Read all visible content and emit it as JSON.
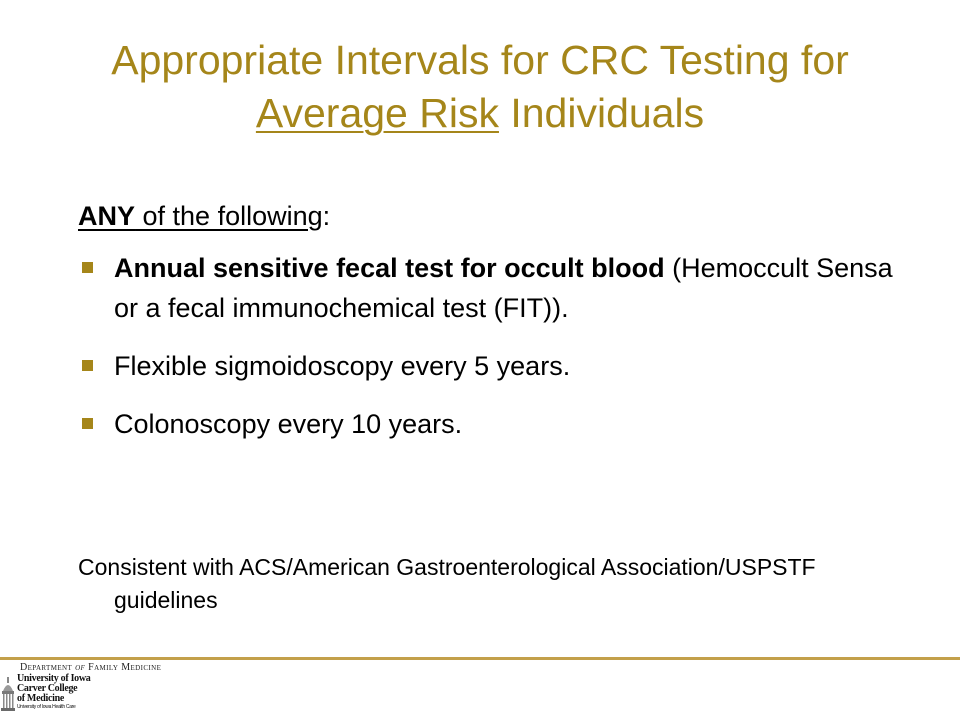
{
  "slide": {
    "title": {
      "line1": "Appropriate Intervals for CRC Testing for",
      "underlined": "Average Risk",
      "rest": " Individuals"
    },
    "intro": {
      "bold": "ANY",
      "rest": " of the following",
      "colon": ":"
    },
    "bullets": [
      {
        "bold": "Annual sensitive fecal test for occult blood",
        "text": " (Hemoccult Sensa or a fecal immunochemical test (FIT))."
      },
      {
        "bold": "",
        "text": "Flexible sigmoidoscopy every 5 years."
      },
      {
        "bold": "",
        "text": "Colonoscopy every 10 years."
      }
    ],
    "footnote": "Consistent with ACS/American Gastroenterological Association/USPSTF guidelines"
  },
  "footer": {
    "department": {
      "pre": "Department ",
      "of": "of",
      "post": " Family Medicine"
    },
    "logo": {
      "line1": "University of Iowa",
      "line2": "Carver College",
      "line3": "of Medicine",
      "line4": "University of Iowa Health Care"
    }
  },
  "colors": {
    "accent": "#a5861a",
    "rule": "#c3a04a"
  }
}
